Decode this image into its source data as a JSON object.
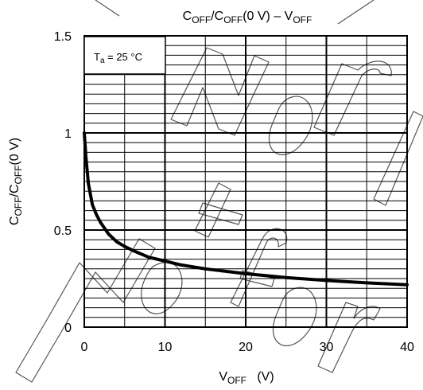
{
  "chart_data": {
    "type": "line",
    "title": {
      "base": "C",
      "sub1": "OFF",
      "mid": "/C",
      "sub2": "OFF",
      "tail": "(0 V) – V",
      "sub3": "OFF"
    },
    "xlabel": {
      "base": "V",
      "sub": "OFF",
      "tail": "   (V)"
    },
    "ylabel": {
      "base": "C",
      "sub1": "OFF",
      "mid": "/C",
      "sub2": "OFF",
      "tail": "(0 V)"
    },
    "xlim": [
      0,
      40
    ],
    "ylim": [
      0,
      1.5
    ],
    "x_ticks": [
      0,
      10,
      20,
      30,
      40
    ],
    "x_tick_labels": [
      "0",
      "10",
      "20",
      "30",
      "40"
    ],
    "y_ticks": [
      0,
      0.5,
      1,
      1.5
    ],
    "y_tick_labels": [
      "0",
      "0.5",
      "1",
      "1.5"
    ],
    "annotation": {
      "base": "T",
      "sub": "a",
      "tail": " = 25 °C"
    },
    "grid": true,
    "series": [
      {
        "color": "#000000",
        "x": [
          0,
          0.2,
          0.5,
          1,
          1.5,
          2,
          3,
          4,
          5,
          6,
          8,
          10,
          12,
          15,
          20,
          25,
          30,
          35,
          40
        ],
        "y": [
          1.0,
          0.88,
          0.74,
          0.63,
          0.58,
          0.54,
          0.48,
          0.44,
          0.415,
          0.395,
          0.36,
          0.34,
          0.32,
          0.3,
          0.275,
          0.255,
          0.24,
          0.228,
          0.218
        ]
      }
    ]
  }
}
